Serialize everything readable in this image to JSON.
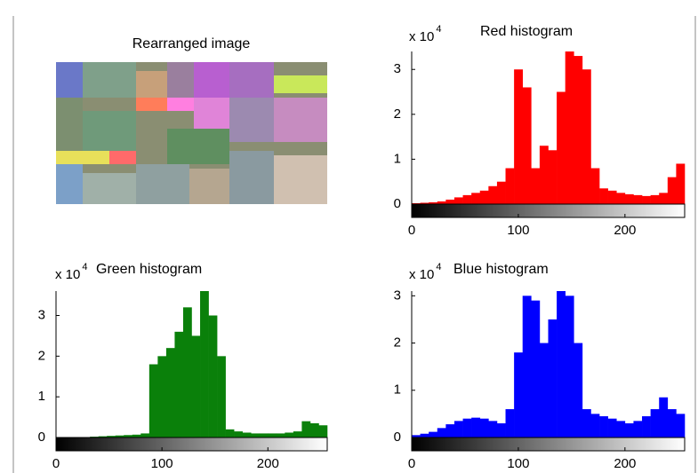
{
  "image_panel": {
    "title": "Rearranged image"
  },
  "chart_data": [
    {
      "type": "histogram",
      "title": "Red histogram",
      "multiplier": "x 10",
      "exponent": "4",
      "color": "#ff0000",
      "bins": [
        0,
        8,
        16,
        24,
        32,
        40,
        48,
        56,
        64,
        72,
        80,
        88,
        96,
        104,
        112,
        120,
        128,
        136,
        144,
        152,
        160,
        168,
        176,
        184,
        192,
        200,
        208,
        216,
        224,
        232,
        240,
        248,
        256
      ],
      "values": [
        0.02,
        0.03,
        0.04,
        0.06,
        0.1,
        0.15,
        0.2,
        0.25,
        0.3,
        0.4,
        0.5,
        0.8,
        3.0,
        2.6,
        0.8,
        1.3,
        1.2,
        2.5,
        3.4,
        3.3,
        3.0,
        0.8,
        0.35,
        0.3,
        0.25,
        0.22,
        0.2,
        0.18,
        0.2,
        0.25,
        0.6,
        0.9
      ],
      "xlim": [
        0,
        256
      ],
      "xticks": [
        0,
        100,
        200
      ],
      "ylim": [
        0,
        3.4
      ],
      "yticks": [
        0,
        1,
        2,
        3
      ]
    },
    {
      "type": "histogram",
      "title": "Green histogram",
      "multiplier": "x 10",
      "exponent": "4",
      "color": "#0a800a",
      "bins": [
        0,
        8,
        16,
        24,
        32,
        40,
        48,
        56,
        64,
        72,
        80,
        88,
        96,
        104,
        112,
        120,
        128,
        136,
        144,
        152,
        160,
        168,
        176,
        184,
        192,
        200,
        208,
        216,
        224,
        232,
        240,
        248,
        256
      ],
      "values": [
        0,
        0,
        0,
        0,
        0.02,
        0.03,
        0.04,
        0.05,
        0.06,
        0.07,
        0.1,
        1.8,
        2.0,
        2.2,
        2.6,
        3.2,
        2.5,
        3.6,
        3.0,
        2.0,
        0.2,
        0.15,
        0.12,
        0.1,
        0.1,
        0.1,
        0.1,
        0.12,
        0.15,
        0.4,
        0.35,
        0.3
      ],
      "xlim": [
        0,
        256
      ],
      "xticks": [
        0,
        100,
        200
      ],
      "ylim": [
        0,
        3.6
      ],
      "yticks": [
        0,
        1,
        2,
        3
      ]
    },
    {
      "type": "histogram",
      "title": "Blue histogram",
      "multiplier": "x 10",
      "exponent": "4",
      "color": "#0000ff",
      "bins": [
        0,
        8,
        16,
        24,
        32,
        40,
        48,
        56,
        64,
        72,
        80,
        88,
        96,
        104,
        112,
        120,
        128,
        136,
        144,
        152,
        160,
        168,
        176,
        184,
        192,
        200,
        208,
        216,
        224,
        232,
        240,
        248,
        256
      ],
      "values": [
        0.05,
        0.08,
        0.12,
        0.2,
        0.28,
        0.35,
        0.4,
        0.42,
        0.4,
        0.35,
        0.3,
        0.6,
        1.8,
        3.0,
        2.9,
        2.0,
        2.5,
        3.1,
        3.0,
        2.0,
        0.6,
        0.5,
        0.45,
        0.4,
        0.35,
        0.3,
        0.35,
        0.45,
        0.6,
        0.85,
        0.6,
        0.5
      ],
      "xlim": [
        0,
        256
      ],
      "xticks": [
        0,
        100,
        200
      ],
      "ylim": [
        0,
        3.1
      ],
      "yticks": [
        0,
        1,
        2,
        3
      ]
    }
  ]
}
